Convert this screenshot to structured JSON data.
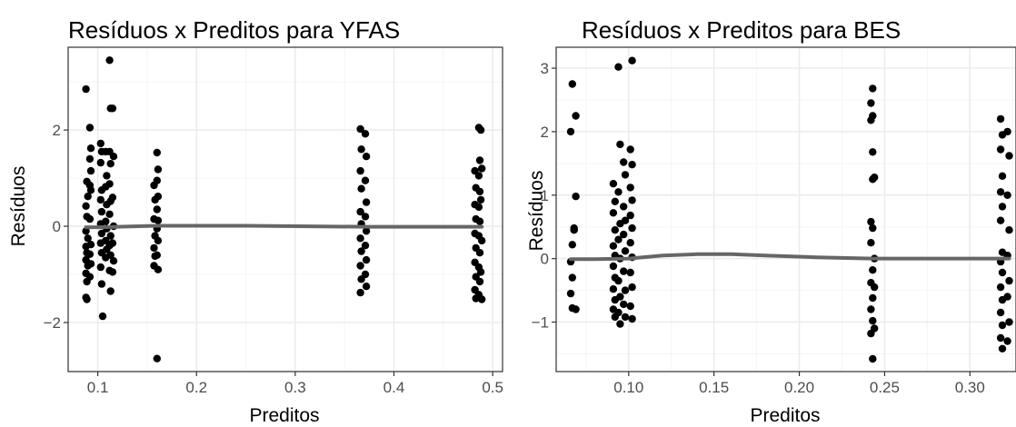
{
  "chart_data": [
    {
      "type": "scatter",
      "title": "Resíduos x Preditos para YFAS",
      "xlabel": "Preditos",
      "ylabel": "Resíduos",
      "xlim": [
        0.07,
        0.51
      ],
      "ylim": [
        -3.02,
        3.72
      ],
      "xticks": [
        0.1,
        0.2,
        0.3,
        0.4,
        0.5
      ],
      "xtick_labels": [
        "0.1",
        "0.2",
        "0.3",
        "0.4",
        "0.5"
      ],
      "yticks": [
        -2,
        0,
        2
      ],
      "ytick_labels": [
        "−2",
        "0",
        "2"
      ],
      "grid": true,
      "colors": {
        "points": "#000000",
        "smooth": "#666666",
        "grid_major": "#ebebeb",
        "grid_minor": "#f5f5f5",
        "border": "#333333"
      },
      "points": [
        [
          0.088,
          2.85
        ],
        [
          0.089,
          0.93
        ],
        [
          0.09,
          0.62
        ],
        [
          0.088,
          0.42
        ],
        [
          0.089,
          0.2
        ],
        [
          0.088,
          -0.1
        ],
        [
          0.09,
          -0.25
        ],
        [
          0.088,
          -0.42
        ],
        [
          0.089,
          -0.55
        ],
        [
          0.088,
          -0.7
        ],
        [
          0.09,
          -0.82
        ],
        [
          0.088,
          -0.98
        ],
        [
          0.089,
          -1.15
        ],
        [
          0.088,
          -1.48
        ],
        [
          0.089,
          -1.52
        ],
        [
          0.092,
          2.05
        ],
        [
          0.093,
          1.62
        ],
        [
          0.092,
          1.4
        ],
        [
          0.093,
          1.15
        ],
        [
          0.092,
          0.85
        ],
        [
          0.093,
          0.75
        ],
        [
          0.092,
          0.15
        ],
        [
          0.093,
          -0.38
        ],
        [
          0.092,
          -0.58
        ],
        [
          0.093,
          -0.78
        ],
        [
          0.092,
          -1.05
        ],
        [
          0.103,
          1.72
        ],
        [
          0.104,
          1.55
        ],
        [
          0.103,
          1.32
        ],
        [
          0.104,
          0.75
        ],
        [
          0.103,
          0.55
        ],
        [
          0.104,
          0.3
        ],
        [
          0.103,
          0.05
        ],
        [
          0.104,
          -0.15
        ],
        [
          0.103,
          -0.35
        ],
        [
          0.104,
          -0.55
        ],
        [
          0.103,
          -0.85
        ],
        [
          0.104,
          -1.2
        ],
        [
          0.105,
          -1.87
        ],
        [
          0.108,
          1.55
        ],
        [
          0.109,
          1.05
        ],
        [
          0.108,
          0.82
        ],
        [
          0.109,
          0.45
        ],
        [
          0.108,
          0.1
        ],
        [
          0.109,
          -0.05
        ],
        [
          0.108,
          -0.3
        ],
        [
          0.109,
          -0.48
        ],
        [
          0.108,
          -0.65
        ],
        [
          0.112,
          3.45
        ],
        [
          0.113,
          2.45
        ],
        [
          0.112,
          1.55
        ],
        [
          0.113,
          1.3
        ],
        [
          0.112,
          0.88
        ],
        [
          0.113,
          0.52
        ],
        [
          0.112,
          0.25
        ],
        [
          0.113,
          -0.2
        ],
        [
          0.112,
          -0.4
        ],
        [
          0.113,
          -0.6
        ],
        [
          0.112,
          -0.92
        ],
        [
          0.113,
          -1.35
        ],
        [
          0.115,
          2.45
        ],
        [
          0.116,
          1.45
        ],
        [
          0.115,
          0.6
        ],
        [
          0.116,
          0.0
        ],
        [
          0.115,
          -0.35
        ],
        [
          0.116,
          -0.72
        ],
        [
          0.115,
          -0.95
        ],
        [
          0.157,
          0.85
        ],
        [
          0.158,
          0.55
        ],
        [
          0.157,
          0.15
        ],
        [
          0.158,
          -0.2
        ],
        [
          0.157,
          -0.45
        ],
        [
          0.158,
          -0.62
        ],
        [
          0.157,
          -0.82
        ],
        [
          0.16,
          1.53
        ],
        [
          0.161,
          1.18
        ],
        [
          0.16,
          0.95
        ],
        [
          0.161,
          0.62
        ],
        [
          0.16,
          0.35
        ],
        [
          0.161,
          0.12
        ],
        [
          0.16,
          -0.05
        ],
        [
          0.161,
          -0.3
        ],
        [
          0.16,
          -0.6
        ],
        [
          0.161,
          -0.9
        ],
        [
          0.16,
          -2.75
        ],
        [
          0.366,
          2.02
        ],
        [
          0.367,
          1.6
        ],
        [
          0.366,
          1.15
        ],
        [
          0.367,
          0.78
        ],
        [
          0.366,
          0.3
        ],
        [
          0.367,
          0.05
        ],
        [
          0.366,
          -0.25
        ],
        [
          0.367,
          -0.52
        ],
        [
          0.366,
          -0.82
        ],
        [
          0.367,
          -1.1
        ],
        [
          0.366,
          -1.38
        ],
        [
          0.371,
          1.92
        ],
        [
          0.372,
          1.45
        ],
        [
          0.371,
          0.95
        ],
        [
          0.372,
          0.5
        ],
        [
          0.371,
          0.2
        ],
        [
          0.372,
          -0.1
        ],
        [
          0.371,
          -0.4
        ],
        [
          0.372,
          -0.7
        ],
        [
          0.371,
          -1.0
        ],
        [
          0.372,
          -1.25
        ],
        [
          0.482,
          1.15
        ],
        [
          0.483,
          0.8
        ],
        [
          0.482,
          0.45
        ],
        [
          0.483,
          0.15
        ],
        [
          0.482,
          -0.15
        ],
        [
          0.483,
          -0.45
        ],
        [
          0.482,
          -0.75
        ],
        [
          0.483,
          -1.05
        ],
        [
          0.482,
          -1.32
        ],
        [
          0.483,
          -1.5
        ],
        [
          0.486,
          2.05
        ],
        [
          0.487,
          1.37
        ],
        [
          0.486,
          1.05
        ],
        [
          0.487,
          0.72
        ],
        [
          0.486,
          0.4
        ],
        [
          0.487,
          0.1
        ],
        [
          0.486,
          -0.2
        ],
        [
          0.487,
          -0.55
        ],
        [
          0.486,
          -0.85
        ],
        [
          0.487,
          -1.15
        ],
        [
          0.486,
          -1.42
        ],
        [
          0.488,
          2.0
        ],
        [
          0.489,
          1.2
        ],
        [
          0.488,
          0.55
        ],
        [
          0.489,
          -0.3
        ],
        [
          0.488,
          -0.95
        ],
        [
          0.489,
          -1.52
        ]
      ],
      "smooth": [
        [
          0.088,
          -0.02
        ],
        [
          0.1,
          -0.02
        ],
        [
          0.12,
          -0.01
        ],
        [
          0.16,
          0.01
        ],
        [
          0.25,
          0.01
        ],
        [
          0.37,
          -0.01
        ],
        [
          0.45,
          -0.01
        ],
        [
          0.489,
          -0.01
        ]
      ]
    },
    {
      "type": "scatter",
      "title": "Resíduos x Preditos para BES",
      "xlabel": "Preditos",
      "ylabel": "Resíduos",
      "xlim": [
        0.0575,
        0.327
      ],
      "ylim": [
        -1.78,
        3.33
      ],
      "xticks": [
        0.1,
        0.15,
        0.2,
        0.25,
        0.3
      ],
      "xtick_labels": [
        "0.10",
        "0.15",
        "0.20",
        "0.25",
        "0.30"
      ],
      "yticks": [
        -1,
        0,
        1,
        2,
        3
      ],
      "ytick_labels": [
        "−1",
        "0",
        "1",
        "2",
        "3"
      ],
      "grid": true,
      "colors": {
        "points": "#000000",
        "smooth": "#666666",
        "grid_major": "#ebebeb",
        "grid_minor": "#f5f5f5",
        "border": "#333333"
      },
      "points": [
        [
          0.067,
          2.75
        ],
        [
          0.066,
          2.0
        ],
        [
          0.068,
          0.48
        ],
        [
          0.067,
          0.22
        ],
        [
          0.066,
          -0.05
        ],
        [
          0.067,
          -0.3
        ],
        [
          0.066,
          -0.55
        ],
        [
          0.067,
          -0.78
        ],
        [
          0.069,
          2.25
        ],
        [
          0.069,
          0.98
        ],
        [
          0.068,
          0.45
        ],
        [
          0.069,
          -0.8
        ],
        [
          0.091,
          1.18
        ],
        [
          0.092,
          0.9
        ],
        [
          0.091,
          0.72
        ],
        [
          0.092,
          0.45
        ],
        [
          0.091,
          0.2
        ],
        [
          0.092,
          0.05
        ],
        [
          0.091,
          -0.12
        ],
        [
          0.092,
          -0.3
        ],
        [
          0.091,
          -0.48
        ],
        [
          0.092,
          -0.65
        ],
        [
          0.091,
          -0.8
        ],
        [
          0.092,
          -0.92
        ],
        [
          0.094,
          3.02
        ],
        [
          0.095,
          1.8
        ],
        [
          0.094,
          1.05
        ],
        [
          0.095,
          0.55
        ],
        [
          0.094,
          0.3
        ],
        [
          0.095,
          0.0
        ],
        [
          0.094,
          -0.35
        ],
        [
          0.095,
          -0.6
        ],
        [
          0.094,
          -0.85
        ],
        [
          0.095,
          -1.03
        ],
        [
          0.097,
          1.52
        ],
        [
          0.098,
          1.32
        ],
        [
          0.097,
          0.82
        ],
        [
          0.098,
          0.6
        ],
        [
          0.097,
          0.38
        ],
        [
          0.098,
          0.12
        ],
        [
          0.097,
          -0.2
        ],
        [
          0.098,
          -0.5
        ],
        [
          0.097,
          -0.72
        ],
        [
          0.098,
          -0.92
        ],
        [
          0.101,
          1.72
        ],
        [
          0.102,
          1.48
        ],
        [
          0.101,
          1.12
        ],
        [
          0.102,
          0.92
        ],
        [
          0.101,
          0.68
        ],
        [
          0.102,
          0.48
        ],
        [
          0.101,
          0.25
        ],
        [
          0.102,
          0.02
        ],
        [
          0.101,
          -0.22
        ],
        [
          0.102,
          -0.45
        ],
        [
          0.101,
          -0.75
        ],
        [
          0.102,
          -0.95
        ],
        [
          0.102,
          3.12
        ],
        [
          0.243,
          2.68
        ],
        [
          0.242,
          2.45
        ],
        [
          0.243,
          2.25
        ],
        [
          0.242,
          2.18
        ],
        [
          0.243,
          1.68
        ],
        [
          0.244,
          1.28
        ],
        [
          0.243,
          1.25
        ],
        [
          0.242,
          0.58
        ],
        [
          0.243,
          0.48
        ],
        [
          0.242,
          0.25
        ],
        [
          0.244,
          0.0
        ],
        [
          0.243,
          -0.18
        ],
        [
          0.242,
          -0.38
        ],
        [
          0.244,
          -0.45
        ],
        [
          0.243,
          -0.62
        ],
        [
          0.242,
          -0.8
        ],
        [
          0.243,
          -0.98
        ],
        [
          0.244,
          -1.1
        ],
        [
          0.242,
          -1.18
        ],
        [
          0.243,
          -1.58
        ],
        [
          0.318,
          2.2
        ],
        [
          0.319,
          1.95
        ],
        [
          0.318,
          1.72
        ],
        [
          0.319,
          1.3
        ],
        [
          0.318,
          1.05
        ],
        [
          0.319,
          0.82
        ],
        [
          0.318,
          0.6
        ],
        [
          0.319,
          0.1
        ],
        [
          0.318,
          -0.05
        ],
        [
          0.319,
          -0.22
        ],
        [
          0.318,
          -0.45
        ],
        [
          0.319,
          -0.65
        ],
        [
          0.318,
          -0.85
        ],
        [
          0.319,
          -1.05
        ],
        [
          0.318,
          -1.25
        ],
        [
          0.319,
          -1.42
        ],
        [
          0.322,
          2.0
        ],
        [
          0.323,
          1.62
        ],
        [
          0.322,
          1.0
        ],
        [
          0.323,
          0.45
        ],
        [
          0.322,
          0.05
        ],
        [
          0.323,
          -0.35
        ],
        [
          0.322,
          -0.6
        ],
        [
          0.323,
          -1.0
        ],
        [
          0.322,
          -1.3
        ]
      ],
      "smooth": [
        [
          0.066,
          -0.01
        ],
        [
          0.08,
          -0.01
        ],
        [
          0.1,
          0.0
        ],
        [
          0.12,
          0.05
        ],
        [
          0.14,
          0.07
        ],
        [
          0.16,
          0.07
        ],
        [
          0.18,
          0.05
        ],
        [
          0.21,
          0.02
        ],
        [
          0.243,
          0.0
        ],
        [
          0.28,
          0.0
        ],
        [
          0.323,
          0.0
        ]
      ]
    }
  ]
}
